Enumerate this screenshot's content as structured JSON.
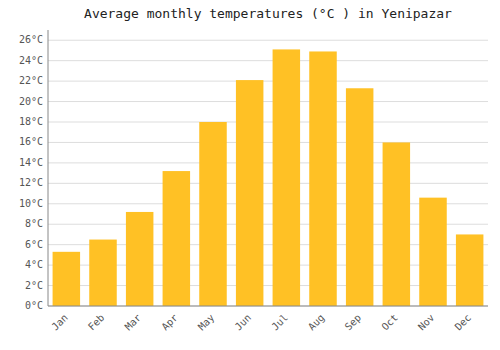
{
  "chart_data": {
    "type": "bar",
    "title": "Average monthly temperatures (°C ) in Yenipazar",
    "categories": [
      "Jan",
      "Feb",
      "Mar",
      "Apr",
      "May",
      "Jun",
      "Jul",
      "Aug",
      "Sep",
      "Oct",
      "Nov",
      "Dec"
    ],
    "values": [
      5.3,
      6.5,
      9.2,
      13.2,
      18.0,
      22.1,
      25.1,
      24.9,
      21.3,
      16.0,
      10.6,
      7.0
    ],
    "color": "#FFC125",
    "ylim": [
      0,
      27
    ],
    "yticks": [
      {
        "value": 0,
        "label": "0°C"
      },
      {
        "value": 2,
        "label": "2°C"
      },
      {
        "value": 4,
        "label": "4°C"
      },
      {
        "value": 6,
        "label": "6°C"
      },
      {
        "value": 8,
        "label": "8°C"
      },
      {
        "value": 10,
        "label": "10°C"
      },
      {
        "value": 12,
        "label": "12°C"
      },
      {
        "value": 14,
        "label": "14°C"
      },
      {
        "value": 16,
        "label": "16°C"
      },
      {
        "value": 18,
        "label": "18°C"
      },
      {
        "value": 20,
        "label": "20°C"
      },
      {
        "value": 22,
        "label": "22°C"
      },
      {
        "value": 24,
        "label": "24°C"
      },
      {
        "value": 26,
        "label": "26°C"
      }
    ],
    "grid": true
  }
}
